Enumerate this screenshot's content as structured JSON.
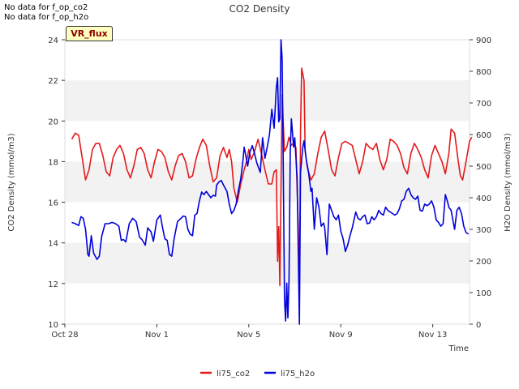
{
  "notices": [
    "No data for f_op_co2",
    "No data for f_op_h2o"
  ],
  "badge": "VR_flux",
  "chart_data": {
    "type": "line",
    "title": "CO2 Density",
    "xlabel": "Time",
    "ylabel": "CO2 Density (mmol/m3)",
    "y2label": "H2O Density (mmol/m3)",
    "xlim": [
      0,
      17.6
    ],
    "ylim": [
      10,
      24
    ],
    "y2lim": [
      0,
      900
    ],
    "xticks": [
      {
        "x": 0,
        "label": "Oct 28"
      },
      {
        "x": 4,
        "label": "Nov 1"
      },
      {
        "x": 8,
        "label": "Nov 5"
      },
      {
        "x": 12,
        "label": "Nov 9"
      },
      {
        "x": 16,
        "label": "Nov 13"
      }
    ],
    "yticks": [
      10,
      12,
      14,
      16,
      18,
      20,
      22,
      24
    ],
    "y2ticks": [
      0,
      100,
      200,
      300,
      400,
      500,
      600,
      700,
      800,
      900
    ],
    "grid": "horizontal bands",
    "legend_position": "bottom-center",
    "series": [
      {
        "name": "li75_co2",
        "axis": "left",
        "color": "#e31a1c",
        "points": [
          [
            0.3,
            19.1
          ],
          [
            0.45,
            19.4
          ],
          [
            0.6,
            19.3
          ],
          [
            0.75,
            18.2
          ],
          [
            0.9,
            17.1
          ],
          [
            1.05,
            17.6
          ],
          [
            1.2,
            18.6
          ],
          [
            1.35,
            18.9
          ],
          [
            1.5,
            18.9
          ],
          [
            1.65,
            18.3
          ],
          [
            1.8,
            17.5
          ],
          [
            1.95,
            17.3
          ],
          [
            2.1,
            18.2
          ],
          [
            2.25,
            18.6
          ],
          [
            2.4,
            18.8
          ],
          [
            2.55,
            18.4
          ],
          [
            2.7,
            17.6
          ],
          [
            2.85,
            17.2
          ],
          [
            3.0,
            17.8
          ],
          [
            3.15,
            18.6
          ],
          [
            3.3,
            18.7
          ],
          [
            3.45,
            18.4
          ],
          [
            3.6,
            17.6
          ],
          [
            3.75,
            17.2
          ],
          [
            3.9,
            18.0
          ],
          [
            4.05,
            18.6
          ],
          [
            4.2,
            18.5
          ],
          [
            4.35,
            18.2
          ],
          [
            4.5,
            17.5
          ],
          [
            4.65,
            17.1
          ],
          [
            4.8,
            17.8
          ],
          [
            4.95,
            18.3
          ],
          [
            5.1,
            18.4
          ],
          [
            5.25,
            18.0
          ],
          [
            5.4,
            17.2
          ],
          [
            5.55,
            17.3
          ],
          [
            5.7,
            18.1
          ],
          [
            5.85,
            18.7
          ],
          [
            6.0,
            19.1
          ],
          [
            6.15,
            18.8
          ],
          [
            6.3,
            17.8
          ],
          [
            6.45,
            17.0
          ],
          [
            6.6,
            17.2
          ],
          [
            6.75,
            18.3
          ],
          [
            6.9,
            18.7
          ],
          [
            7.05,
            18.2
          ],
          [
            7.15,
            18.6
          ],
          [
            7.25,
            18.0
          ],
          [
            7.35,
            16.7
          ],
          [
            7.5,
            16.0
          ],
          [
            7.65,
            16.9
          ],
          [
            7.8,
            17.6
          ],
          [
            7.9,
            18.0
          ],
          [
            8.0,
            18.6
          ],
          [
            8.1,
            18.1
          ],
          [
            8.25,
            18.5
          ],
          [
            8.4,
            19.1
          ],
          [
            8.55,
            18.4
          ],
          [
            8.7,
            17.6
          ],
          [
            8.85,
            16.9
          ],
          [
            9.0,
            16.9
          ],
          [
            9.1,
            17.5
          ],
          [
            9.2,
            17.6
          ],
          [
            9.25,
            13.1
          ],
          [
            9.3,
            14.8
          ],
          [
            9.35,
            11.9
          ],
          [
            9.45,
            21.3
          ],
          [
            9.55,
            18.5
          ],
          [
            9.65,
            18.7
          ],
          [
            9.75,
            19.2
          ],
          [
            9.85,
            18.8
          ],
          [
            9.95,
            18.9
          ],
          [
            10.05,
            18.7
          ],
          [
            10.15,
            14.8
          ],
          [
            10.2,
            11.3
          ],
          [
            10.25,
            19.5
          ],
          [
            10.3,
            22.6
          ],
          [
            10.4,
            22.0
          ],
          [
            10.45,
            18.5
          ],
          [
            10.55,
            17.7
          ],
          [
            10.7,
            17.1
          ],
          [
            10.85,
            17.4
          ],
          [
            11.0,
            18.4
          ],
          [
            11.15,
            19.2
          ],
          [
            11.3,
            19.5
          ],
          [
            11.45,
            18.6
          ],
          [
            11.6,
            17.6
          ],
          [
            11.75,
            17.3
          ],
          [
            11.9,
            18.2
          ],
          [
            12.05,
            18.9
          ],
          [
            12.2,
            19.0
          ],
          [
            12.35,
            18.9
          ],
          [
            12.5,
            18.8
          ],
          [
            12.65,
            18.1
          ],
          [
            12.8,
            17.4
          ],
          [
            12.95,
            18.0
          ],
          [
            13.1,
            18.9
          ],
          [
            13.25,
            18.7
          ],
          [
            13.4,
            18.6
          ],
          [
            13.55,
            18.9
          ],
          [
            13.7,
            18.1
          ],
          [
            13.85,
            17.6
          ],
          [
            14.0,
            18.1
          ],
          [
            14.15,
            19.1
          ],
          [
            14.3,
            19.0
          ],
          [
            14.45,
            18.8
          ],
          [
            14.6,
            18.4
          ],
          [
            14.75,
            17.7
          ],
          [
            14.9,
            17.4
          ],
          [
            15.05,
            18.4
          ],
          [
            15.2,
            18.9
          ],
          [
            15.35,
            18.6
          ],
          [
            15.5,
            18.2
          ],
          [
            15.65,
            17.6
          ],
          [
            15.8,
            17.2
          ],
          [
            15.95,
            18.3
          ],
          [
            16.1,
            18.8
          ],
          [
            16.25,
            18.4
          ],
          [
            16.4,
            18.0
          ],
          [
            16.55,
            17.4
          ],
          [
            16.7,
            18.4
          ],
          [
            16.8,
            19.6
          ],
          [
            16.95,
            19.4
          ],
          [
            17.1,
            18.1
          ],
          [
            17.2,
            17.3
          ],
          [
            17.3,
            17.1
          ],
          [
            17.45,
            18.0
          ],
          [
            17.6,
            19.0
          ],
          [
            17.7,
            19.2
          ]
        ]
      },
      {
        "name": "li75_h2o",
        "axis": "right",
        "color": "#0000dd",
        "points": [
          [
            0.3,
            322
          ],
          [
            0.45,
            318
          ],
          [
            0.6,
            312
          ],
          [
            0.7,
            340
          ],
          [
            0.8,
            335
          ],
          [
            0.9,
            300
          ],
          [
            1.0,
            220
          ],
          [
            1.05,
            215
          ],
          [
            1.15,
            280
          ],
          [
            1.25,
            225
          ],
          [
            1.4,
            205
          ],
          [
            1.5,
            215
          ],
          [
            1.6,
            278
          ],
          [
            1.75,
            318
          ],
          [
            1.9,
            318
          ],
          [
            2.05,
            322
          ],
          [
            2.2,
            318
          ],
          [
            2.35,
            310
          ],
          [
            2.45,
            265
          ],
          [
            2.55,
            268
          ],
          [
            2.65,
            260
          ],
          [
            2.8,
            318
          ],
          [
            2.95,
            335
          ],
          [
            3.1,
            325
          ],
          [
            3.25,
            275
          ],
          [
            3.35,
            268
          ],
          [
            3.5,
            250
          ],
          [
            3.6,
            305
          ],
          [
            3.75,
            292
          ],
          [
            3.85,
            262
          ],
          [
            4.0,
            330
          ],
          [
            4.15,
            345
          ],
          [
            4.25,
            305
          ],
          [
            4.35,
            270
          ],
          [
            4.45,
            265
          ],
          [
            4.55,
            220
          ],
          [
            4.65,
            215
          ],
          [
            4.75,
            270
          ],
          [
            4.9,
            325
          ],
          [
            5.05,
            335
          ],
          [
            5.15,
            342
          ],
          [
            5.25,
            340
          ],
          [
            5.35,
            300
          ],
          [
            5.45,
            285
          ],
          [
            5.55,
            280
          ],
          [
            5.65,
            345
          ],
          [
            5.75,
            350
          ],
          [
            5.85,
            390
          ],
          [
            5.95,
            418
          ],
          [
            6.05,
            410
          ],
          [
            6.15,
            420
          ],
          [
            6.25,
            410
          ],
          [
            6.35,
            400
          ],
          [
            6.45,
            408
          ],
          [
            6.55,
            405
          ],
          [
            6.6,
            440
          ],
          [
            6.7,
            450
          ],
          [
            6.8,
            455
          ],
          [
            6.9,
            440
          ],
          [
            7.05,
            420
          ],
          [
            7.15,
            380
          ],
          [
            7.25,
            350
          ],
          [
            7.35,
            360
          ],
          [
            7.45,
            380
          ],
          [
            7.55,
            425
          ],
          [
            7.65,
            460
          ],
          [
            7.75,
            520
          ],
          [
            7.8,
            560
          ],
          [
            7.85,
            540
          ],
          [
            7.95,
            500
          ],
          [
            8.05,
            545
          ],
          [
            8.15,
            565
          ],
          [
            8.25,
            540
          ],
          [
            8.35,
            510
          ],
          [
            8.5,
            480
          ],
          [
            8.6,
            590
          ],
          [
            8.7,
            525
          ],
          [
            8.8,
            560
          ],
          [
            8.9,
            600
          ],
          [
            9.0,
            680
          ],
          [
            9.1,
            620
          ],
          [
            9.2,
            750
          ],
          [
            9.25,
            780
          ],
          [
            9.3,
            640
          ],
          [
            9.35,
            650
          ],
          [
            9.4,
            900
          ],
          [
            9.45,
            840
          ],
          [
            9.5,
            500
          ],
          [
            9.55,
            80
          ],
          [
            9.6,
            10
          ],
          [
            9.65,
            130
          ],
          [
            9.7,
            20
          ],
          [
            9.75,
            140
          ],
          [
            9.8,
            540
          ],
          [
            9.85,
            650
          ],
          [
            9.95,
            560
          ],
          [
            10.0,
            590
          ],
          [
            10.1,
            460
          ],
          [
            10.2,
            0
          ],
          [
            10.25,
            480
          ],
          [
            10.35,
            560
          ],
          [
            10.4,
            580
          ],
          [
            10.5,
            520
          ],
          [
            10.6,
            480
          ],
          [
            10.7,
            420
          ],
          [
            10.75,
            430
          ],
          [
            10.85,
            300
          ],
          [
            10.95,
            400
          ],
          [
            11.05,
            370
          ],
          [
            11.15,
            310
          ],
          [
            11.25,
            320
          ],
          [
            11.3,
            305
          ],
          [
            11.4,
            220
          ],
          [
            11.5,
            380
          ],
          [
            11.6,
            360
          ],
          [
            11.7,
            340
          ],
          [
            11.8,
            330
          ],
          [
            11.9,
            345
          ],
          [
            12.0,
            295
          ],
          [
            12.1,
            270
          ],
          [
            12.2,
            230
          ],
          [
            12.3,
            250
          ],
          [
            12.4,
            280
          ],
          [
            12.5,
            305
          ],
          [
            12.65,
            355
          ],
          [
            12.75,
            335
          ],
          [
            12.85,
            330
          ],
          [
            12.95,
            340
          ],
          [
            13.05,
            345
          ],
          [
            13.15,
            318
          ],
          [
            13.25,
            320
          ],
          [
            13.35,
            340
          ],
          [
            13.45,
            330
          ],
          [
            13.55,
            340
          ],
          [
            13.65,
            360
          ],
          [
            13.75,
            350
          ],
          [
            13.85,
            345
          ],
          [
            13.95,
            370
          ],
          [
            14.05,
            360
          ],
          [
            14.15,
            355
          ],
          [
            14.25,
            350
          ],
          [
            14.35,
            345
          ],
          [
            14.45,
            350
          ],
          [
            14.55,
            365
          ],
          [
            14.65,
            390
          ],
          [
            14.75,
            395
          ],
          [
            14.85,
            420
          ],
          [
            14.95,
            430
          ],
          [
            15.05,
            410
          ],
          [
            15.15,
            400
          ],
          [
            15.25,
            395
          ],
          [
            15.35,
            405
          ],
          [
            15.45,
            360
          ],
          [
            15.55,
            358
          ],
          [
            15.65,
            380
          ],
          [
            15.75,
            375
          ],
          [
            15.85,
            380
          ],
          [
            15.95,
            390
          ],
          [
            16.05,
            370
          ],
          [
            16.15,
            330
          ],
          [
            16.25,
            322
          ],
          [
            16.35,
            310
          ],
          [
            16.45,
            318
          ],
          [
            16.55,
            410
          ],
          [
            16.65,
            385
          ],
          [
            16.7,
            370
          ],
          [
            16.8,
            360
          ],
          [
            16.95,
            300
          ],
          [
            17.05,
            360
          ],
          [
            17.15,
            370
          ],
          [
            17.25,
            350
          ],
          [
            17.35,
            310
          ],
          [
            17.45,
            290
          ],
          [
            17.55,
            285
          ]
        ]
      }
    ]
  }
}
